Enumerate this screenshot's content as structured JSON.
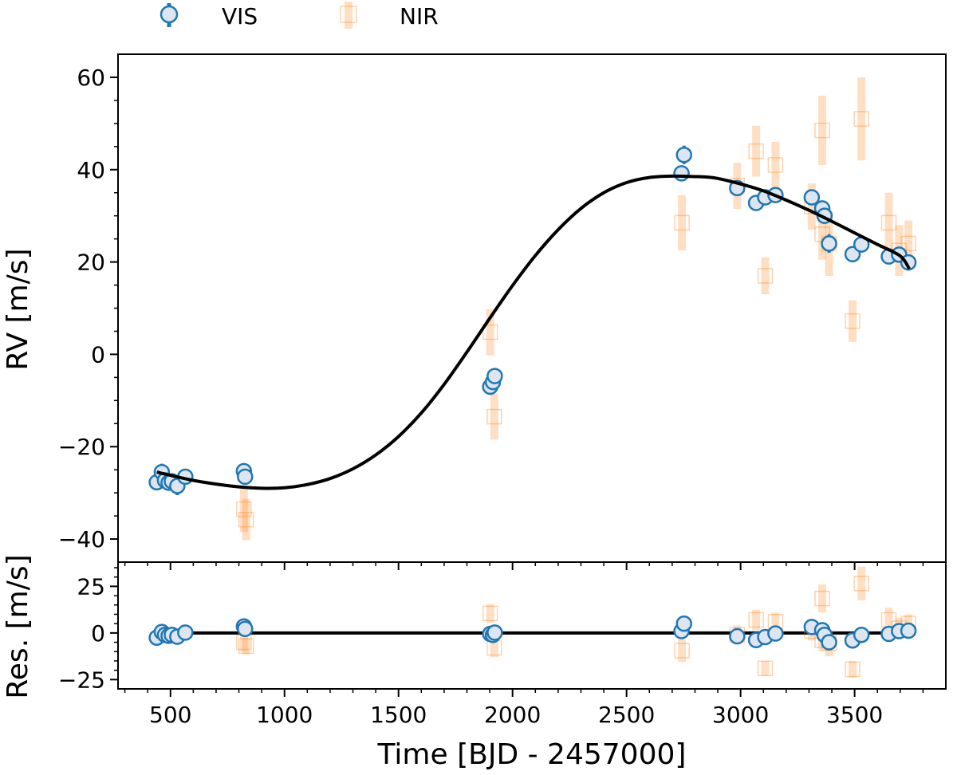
{
  "colors": {
    "vis": "#1f77b4",
    "vis_fill": "#dde6f0",
    "nir": "#ff7f0e",
    "nir_fill": "#ffffff",
    "model": "#000000"
  },
  "chart_data": [
    {
      "type": "scatter",
      "panel": "rv",
      "title": "",
      "xlabel": "",
      "ylabel": "RV [m/s]",
      "xlim": [
        270,
        3900
      ],
      "ylim": [
        -45,
        65
      ],
      "yticks": [
        "60",
        "40",
        "20",
        "0",
        "−20",
        "−40"
      ],
      "ytick_values": [
        60,
        40,
        20,
        0,
        -20,
        -40
      ],
      "legend": {
        "position": "top-left-above",
        "entries": [
          "VIS",
          "NIR"
        ]
      },
      "series": [
        {
          "name": "VIS",
          "marker": "circle",
          "points": [
            {
              "x": 440,
              "y": -27.7,
              "err": 1.2
            },
            {
              "x": 462,
              "y": -25.5,
              "err": 1.8
            },
            {
              "x": 476,
              "y": -27.3,
              "err": 1.5
            },
            {
              "x": 492,
              "y": -27.8,
              "err": 1.2
            },
            {
              "x": 506,
              "y": -27.5,
              "err": 1.2
            },
            {
              "x": 530,
              "y": -28.5,
              "err": 2.0
            },
            {
              "x": 565,
              "y": -26.5,
              "err": 1.2
            },
            {
              "x": 822,
              "y": -25.3,
              "err": 1.2
            },
            {
              "x": 827,
              "y": -26.5,
              "err": 1.2
            },
            {
              "x": 1902,
              "y": -7.0,
              "err": 1.2
            },
            {
              "x": 1914,
              "y": -6.0,
              "err": 1.2
            },
            {
              "x": 1922,
              "y": -4.7,
              "err": 1.2
            },
            {
              "x": 2741,
              "y": 39.2,
              "err": 1.2
            },
            {
              "x": 2752,
              "y": 43.2,
              "err": 2.0
            },
            {
              "x": 2985,
              "y": 36.0,
              "err": 1.2
            },
            {
              "x": 3068,
              "y": 32.8,
              "err": 1.2
            },
            {
              "x": 3108,
              "y": 34.0,
              "err": 1.2
            },
            {
              "x": 3153,
              "y": 34.5,
              "err": 1.2
            },
            {
              "x": 3312,
              "y": 34.0,
              "err": 1.2
            },
            {
              "x": 3358,
              "y": 31.6,
              "err": 1.2
            },
            {
              "x": 3368,
              "y": 30.0,
              "err": 1.2
            },
            {
              "x": 3388,
              "y": 24.0,
              "err": 2.0
            },
            {
              "x": 3491,
              "y": 21.7,
              "err": 1.2
            },
            {
              "x": 3530,
              "y": 23.8,
              "err": 1.2
            },
            {
              "x": 3650,
              "y": 21.2,
              "err": 1.2
            },
            {
              "x": 3695,
              "y": 21.6,
              "err": 1.2
            },
            {
              "x": 3736,
              "y": 19.9,
              "err": 1.2
            }
          ]
        },
        {
          "name": "NIR",
          "marker": "square",
          "points": [
            {
              "x": 822,
              "y": -33.5,
              "err": 5.0
            },
            {
              "x": 832,
              "y": -35.8,
              "err": 4.5
            },
            {
              "x": 1902,
              "y": 4.8,
              "err": 5.0
            },
            {
              "x": 1920,
              "y": -13.5,
              "err": 5.0
            },
            {
              "x": 2743,
              "y": 28.5,
              "err": 6.0
            },
            {
              "x": 2985,
              "y": 36.5,
              "err": 5.0
            },
            {
              "x": 3068,
              "y": 44.0,
              "err": 5.5
            },
            {
              "x": 3108,
              "y": 17.0,
              "err": 4.0
            },
            {
              "x": 3153,
              "y": 41.0,
              "err": 5.0
            },
            {
              "x": 3312,
              "y": 32.0,
              "err": 5.0
            },
            {
              "x": 3358,
              "y": 48.5,
              "err": 7.5
            },
            {
              "x": 3358,
              "y": 26.0,
              "err": 5.5
            },
            {
              "x": 3388,
              "y": 24.0,
              "err": 7.0
            },
            {
              "x": 3491,
              "y": 7.2,
              "err": 4.5
            },
            {
              "x": 3530,
              "y": 51.0,
              "err": 9.0
            },
            {
              "x": 3650,
              "y": 28.5,
              "err": 6.5
            },
            {
              "x": 3695,
              "y": 22.5,
              "err": 5.5
            },
            {
              "x": 3736,
              "y": 24.0,
              "err": 5.0
            }
          ]
        },
        {
          "name": "Model",
          "type": "line",
          "x": [
            440,
            500,
            600,
            700,
            800,
            900,
            1000,
            1100,
            1200,
            1300,
            1400,
            1500,
            1600,
            1700,
            1800,
            1900,
            2000,
            2100,
            2200,
            2300,
            2400,
            2500,
            2600,
            2700,
            2800,
            2850,
            2900,
            3000,
            3100,
            3200,
            3300,
            3400,
            3500,
            3600,
            3700,
            3740
          ],
          "y": [
            -25.5,
            -26.2,
            -27.3,
            -28.1,
            -28.7,
            -29.0,
            -28.9,
            -28.2,
            -26.9,
            -24.8,
            -21.8,
            -17.8,
            -12.7,
            -6.5,
            0.5,
            7.8,
            14.9,
            21.4,
            27.0,
            31.6,
            35.0,
            37.2,
            38.3,
            38.6,
            38.5,
            38.4,
            38.1,
            36.9,
            35.4,
            33.4,
            31.2,
            28.8,
            26.3,
            23.8,
            21.3,
            18.5
          ]
        }
      ]
    },
    {
      "type": "scatter",
      "panel": "residuals",
      "title": "",
      "xlabel": "Time [BJD - 2457000]",
      "ylabel": "Res. [m/s]",
      "xlim": [
        270,
        3900
      ],
      "ylim": [
        -30,
        38
      ],
      "xticks": [
        "500",
        "1000",
        "1500",
        "2000",
        "2500",
        "3000",
        "3500"
      ],
      "xtick_values": [
        500,
        1000,
        1500,
        2000,
        2500,
        3000,
        3500
      ],
      "yticks": [
        "25",
        "0",
        "−25"
      ],
      "ytick_values": [
        25,
        0,
        -25
      ],
      "zero_line": 0,
      "series": [
        {
          "name": "VIS",
          "marker": "circle",
          "points": [
            {
              "x": 440,
              "y": -2.5,
              "err": 1.5
            },
            {
              "x": 462,
              "y": 0.5,
              "err": 1.5
            },
            {
              "x": 476,
              "y": -1.0,
              "err": 1.5
            },
            {
              "x": 492,
              "y": -1.5,
              "err": 1.5
            },
            {
              "x": 506,
              "y": -1.0,
              "err": 1.5
            },
            {
              "x": 530,
              "y": -2.0,
              "err": 1.5
            },
            {
              "x": 565,
              "y": 0.2,
              "err": 1.5
            },
            {
              "x": 822,
              "y": 3.5,
              "err": 1.5
            },
            {
              "x": 827,
              "y": 2.2,
              "err": 1.5
            },
            {
              "x": 1902,
              "y": -0.5,
              "err": 1.5
            },
            {
              "x": 1914,
              "y": -1.0,
              "err": 1.5
            },
            {
              "x": 1922,
              "y": 0.2,
              "err": 1.5
            },
            {
              "x": 2741,
              "y": 1.0,
              "err": 1.5
            },
            {
              "x": 2752,
              "y": 5.0,
              "err": 1.5
            },
            {
              "x": 2985,
              "y": -1.8,
              "err": 1.5
            },
            {
              "x": 3068,
              "y": -3.8,
              "err": 1.5
            },
            {
              "x": 3108,
              "y": -2.2,
              "err": 1.5
            },
            {
              "x": 3153,
              "y": -0.3,
              "err": 1.5
            },
            {
              "x": 3312,
              "y": 3.2,
              "err": 1.5
            },
            {
              "x": 3358,
              "y": 1.5,
              "err": 1.5
            },
            {
              "x": 3368,
              "y": -1.0,
              "err": 1.5
            },
            {
              "x": 3388,
              "y": -5.0,
              "err": 2.0
            },
            {
              "x": 3491,
              "y": -4.0,
              "err": 1.5
            },
            {
              "x": 3530,
              "y": -1.0,
              "err": 1.5
            },
            {
              "x": 3650,
              "y": -0.5,
              "err": 1.5
            },
            {
              "x": 3695,
              "y": 1.0,
              "err": 1.5
            },
            {
              "x": 3736,
              "y": 1.2,
              "err": 1.5
            }
          ]
        },
        {
          "name": "NIR",
          "marker": "square",
          "points": [
            {
              "x": 822,
              "y": -5.0,
              "err": 5.0
            },
            {
              "x": 832,
              "y": -7.0,
              "err": 4.5
            },
            {
              "x": 1902,
              "y": 10.5,
              "err": 5.0
            },
            {
              "x": 1920,
              "y": -8.0,
              "err": 5.0
            },
            {
              "x": 2743,
              "y": -9.5,
              "err": 6.0
            },
            {
              "x": 2985,
              "y": -1.0,
              "err": 5.0
            },
            {
              "x": 3068,
              "y": 7.0,
              "err": 5.5
            },
            {
              "x": 3108,
              "y": -19.0,
              "err": 4.0
            },
            {
              "x": 3153,
              "y": 6.0,
              "err": 5.0
            },
            {
              "x": 3312,
              "y": 1.0,
              "err": 5.0
            },
            {
              "x": 3358,
              "y": 18.5,
              "err": 7.5
            },
            {
              "x": 3358,
              "y": -4.0,
              "err": 5.5
            },
            {
              "x": 3388,
              "y": -5.5,
              "err": 7.0
            },
            {
              "x": 3491,
              "y": -19.5,
              "err": 4.5
            },
            {
              "x": 3530,
              "y": 26.5,
              "err": 9.0
            },
            {
              "x": 3650,
              "y": 7.0,
              "err": 6.5
            },
            {
              "x": 3695,
              "y": 2.5,
              "err": 5.5
            },
            {
              "x": 3736,
              "y": 5.0,
              "err": 5.0
            }
          ]
        }
      ]
    }
  ]
}
